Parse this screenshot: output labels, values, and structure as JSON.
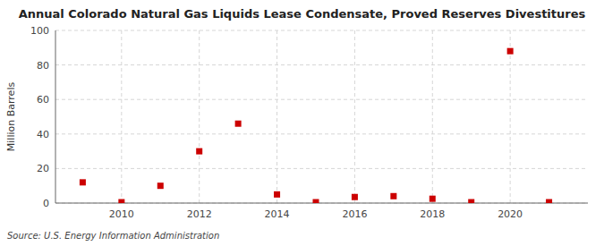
{
  "chart_data": {
    "type": "scatter",
    "title": "Annual Colorado Natural Gas Liquids Lease Condensate, Proved Reserves Divestitures",
    "ylabel": "Million Barrels",
    "annotations": [
      "Source: U.S. Energy Information Administration"
    ],
    "x": [
      2009,
      2010,
      2011,
      2012,
      2013,
      2014,
      2015,
      2016,
      2017,
      2018,
      2019,
      2020,
      2021
    ],
    "values": [
      12,
      0.5,
      10,
      30,
      46,
      5,
      0.5,
      3.5,
      4,
      2.5,
      0.5,
      88,
      0.5
    ],
    "color": "#cc0000",
    "marker": "square",
    "xlim": [
      2008.3,
      2022.0
    ],
    "xticks": [
      2010,
      2012,
      2014,
      2016,
      2018,
      2020
    ],
    "ylim": [
      0,
      100
    ],
    "yticks": [
      0,
      20,
      40,
      60,
      80,
      100
    ],
    "grid": true
  }
}
